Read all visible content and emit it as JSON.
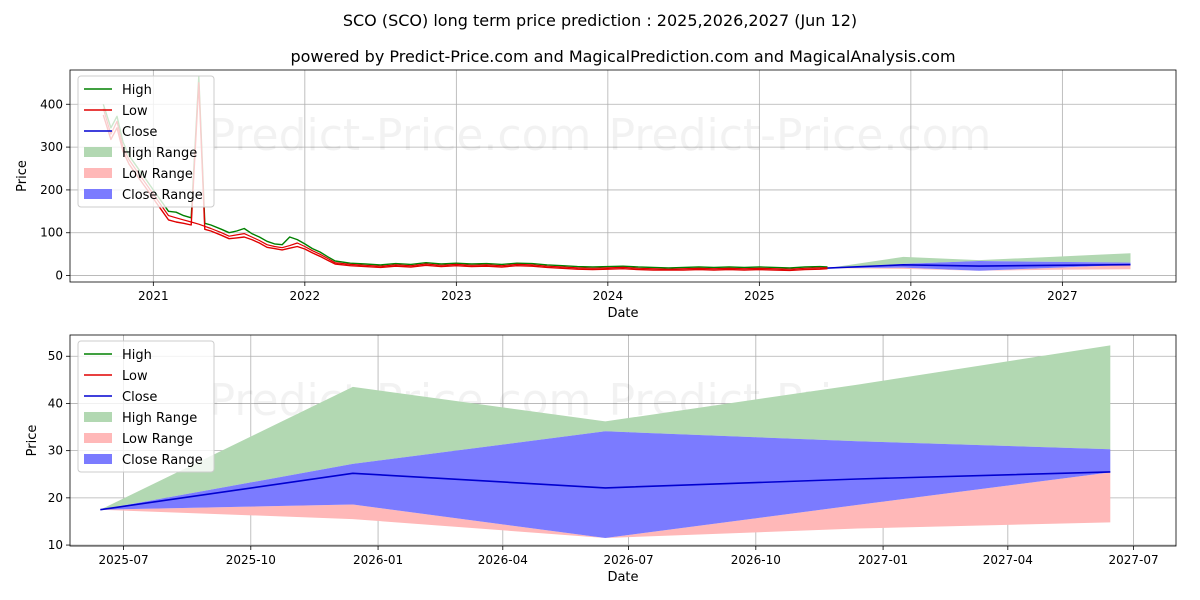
{
  "title": "SCO (SCO) long term price prediction : 2025,2026,2027 (Jun 12)",
  "subtitle": "powered by Predict-Price.com and MagicalPrediction.com and MagicalAnalysis.com",
  "watermark": "Predict-Price.com",
  "colors": {
    "high": "#008000",
    "low": "#e00000",
    "close": "#0000d0",
    "high_range": "#b2d8b2",
    "low_range": "#ffb8b8",
    "close_range": "#7b7bff",
    "grid": "#b0b0b0"
  },
  "legend": [
    {
      "key": "high",
      "label": "High",
      "kind": "line"
    },
    {
      "key": "low",
      "label": "Low",
      "kind": "line"
    },
    {
      "key": "close",
      "label": "Close",
      "kind": "line"
    },
    {
      "key": "high_range",
      "label": "High Range",
      "kind": "patch"
    },
    {
      "key": "low_range",
      "label": "Low Range",
      "kind": "patch"
    },
    {
      "key": "close_range",
      "label": "Close Range",
      "kind": "patch"
    }
  ],
  "chart_data": [
    {
      "type": "line",
      "name": "history-and-forecast",
      "xlabel": "Date",
      "ylabel": "Price",
      "xlim": [
        2020.45,
        2027.75
      ],
      "ylim": [
        -15,
        480
      ],
      "xticks": [
        2021,
        2022,
        2023,
        2024,
        2025,
        2026,
        2027
      ],
      "xtick_labels": [
        "2021",
        "2022",
        "2023",
        "2024",
        "2025",
        "2026",
        "2027"
      ],
      "yticks": [
        0,
        100,
        200,
        300,
        400
      ],
      "legend_position": "upper-left",
      "history": {
        "x": [
          2020.67,
          2020.72,
          2020.76,
          2020.8,
          2020.84,
          2020.88,
          2020.92,
          2020.96,
          2021.0,
          2021.05,
          2021.1,
          2021.15,
          2021.2,
          2021.25,
          2021.3,
          2021.34,
          2021.38,
          2021.45,
          2021.5,
          2021.55,
          2021.6,
          2021.65,
          2021.7,
          2021.75,
          2021.8,
          2021.85,
          2021.9,
          2021.95,
          2022.0,
          2022.05,
          2022.1,
          2022.15,
          2022.2,
          2022.3,
          2022.4,
          2022.5,
          2022.6,
          2022.7,
          2022.8,
          2022.9,
          2023.0,
          2023.1,
          2023.2,
          2023.3,
          2023.4,
          2023.5,
          2023.6,
          2023.7,
          2023.8,
          2023.9,
          2024.0,
          2024.1,
          2024.2,
          2024.3,
          2024.4,
          2024.5,
          2024.6,
          2024.7,
          2024.8,
          2024.9,
          2025.0,
          2025.1,
          2025.2,
          2025.3,
          2025.4,
          2025.45
        ],
        "close": [
          390,
          330,
          360,
          300,
          270,
          250,
          230,
          210,
          190,
          165,
          140,
          135,
          130,
          125,
          120,
          115,
          110,
          100,
          92,
          95,
          98,
          90,
          82,
          72,
          68,
          65,
          70,
          76,
          68,
          58,
          50,
          40,
          30,
          26,
          24,
          22,
          25,
          23,
          27,
          24,
          26,
          24,
          25,
          23,
          26,
          25,
          22,
          20,
          18,
          17,
          18,
          19,
          17,
          16,
          15,
          16,
          17,
          16,
          17,
          16,
          17,
          16,
          15,
          17,
          18,
          18
        ],
        "high": [
          400,
          345,
          372,
          312,
          280,
          260,
          240,
          220,
          200,
          175,
          150,
          148,
          140,
          135,
          465,
          122,
          118,
          108,
          100,
          104,
          110,
          98,
          90,
          80,
          74,
          72,
          90,
          84,
          74,
          63,
          55,
          44,
          34,
          29,
          27,
          25,
          28,
          26,
          30,
          27,
          29,
          27,
          28,
          26,
          29,
          28,
          25,
          23,
          21,
          20,
          21,
          22,
          20,
          19,
          18,
          19,
          20,
          19,
          20,
          19,
          20,
          19,
          18,
          20,
          21,
          20
        ],
        "low": [
          375,
          318,
          345,
          290,
          260,
          240,
          220,
          200,
          180,
          155,
          130,
          125,
          122,
          118,
          450,
          108,
          104,
          94,
          86,
          88,
          90,
          84,
          76,
          66,
          63,
          60,
          64,
          68,
          62,
          53,
          45,
          36,
          27,
          23,
          21,
          19,
          22,
          20,
          24,
          21,
          23,
          21,
          22,
          20,
          23,
          22,
          19,
          17,
          15,
          14,
          15,
          16,
          14,
          13,
          13,
          13,
          14,
          13,
          14,
          13,
          14,
          13,
          12,
          14,
          15,
          16
        ]
      },
      "forecast": {
        "x": [
          2025.45,
          2025.95,
          2026.45,
          2026.95,
          2027.45
        ],
        "close": [
          17.5,
          25.2,
          22.1,
          24.0,
          25.5
        ],
        "high_range_upper": [
          17.5,
          43.5,
          36.2,
          44.0,
          52.3
        ],
        "high_range_lower": [
          17.5,
          27.2,
          34.1,
          32.0,
          30.3
        ],
        "close_range_upper": [
          17.5,
          27.2,
          34.1,
          32.0,
          30.3
        ],
        "close_range_lower": [
          17.5,
          18.6,
          11.5,
          18.5,
          25.4
        ],
        "low_range_upper": [
          17.5,
          18.6,
          11.5,
          18.5,
          25.4
        ],
        "low_range_lower": [
          17.5,
          15.5,
          11.5,
          13.5,
          14.8
        ]
      }
    },
    {
      "type": "line",
      "name": "forecast-zoom",
      "xlabel": "Date",
      "ylabel": "Price",
      "xlim": [
        2025.39,
        2027.58
      ],
      "ylim": [
        9.8,
        54.5
      ],
      "xticks": [
        2025.496,
        2025.748,
        2026.0,
        2026.247,
        2026.496,
        2026.748,
        2027.0,
        2027.247,
        2027.496
      ],
      "xtick_labels": [
        "2025-07",
        "2025-10",
        "2026-01",
        "2026-04",
        "2026-07",
        "2026-10",
        "2027-01",
        "2027-04",
        "2027-07"
      ],
      "yticks": [
        10,
        20,
        30,
        40,
        50
      ],
      "legend_position": "upper-left",
      "forecast": {
        "x": [
          2025.45,
          2025.95,
          2026.45,
          2026.95,
          2027.45
        ],
        "close": [
          17.5,
          25.2,
          22.1,
          24.0,
          25.5
        ],
        "high_range_upper": [
          17.5,
          43.5,
          36.2,
          44.0,
          52.3
        ],
        "high_range_lower": [
          17.5,
          27.2,
          34.1,
          32.0,
          30.3
        ],
        "close_range_upper": [
          17.5,
          27.2,
          34.1,
          32.0,
          30.3
        ],
        "close_range_lower": [
          17.5,
          18.6,
          11.5,
          18.5,
          25.4
        ],
        "low_range_upper": [
          17.5,
          18.6,
          11.5,
          18.5,
          25.4
        ],
        "low_range_lower": [
          17.5,
          15.5,
          11.5,
          13.5,
          14.8
        ]
      }
    }
  ]
}
